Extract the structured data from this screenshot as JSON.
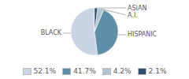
{
  "chart_data": {
    "type": "pie",
    "categories": [
      "BLACK",
      "HISPANIC",
      "A.I.",
      "ASIAN"
    ],
    "values": [
      52.1,
      41.7,
      4.2,
      2.1
    ],
    "value_labels": [
      "52.1%",
      "41.7%",
      "4.2%",
      "2.1%"
    ],
    "colors": [
      "#c9d4e4",
      "#5e8fa8",
      "#b0c4d4",
      "#2d4f6e"
    ],
    "legend": "bottom"
  }
}
